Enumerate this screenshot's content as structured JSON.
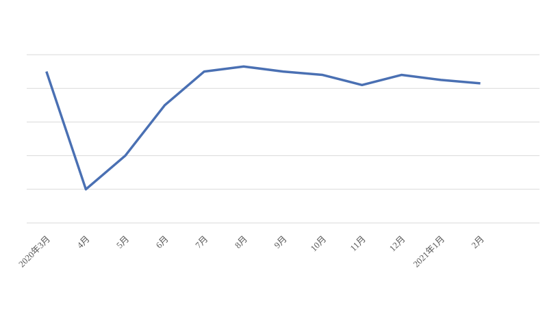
{
  "chart_data": {
    "type": "line",
    "categories": [
      "2020年3月",
      "4月",
      "5月",
      "6月",
      "7月",
      "8月",
      "9月",
      "10月",
      "11月",
      "12月",
      "2021年1月",
      "2月",
      null
    ],
    "series": [
      {
        "color": "#4a70b3",
        "values": [
          4.5,
          1.0,
          2.0,
          3.5,
          4.5,
          4.65,
          4.5,
          4.4,
          4.1,
          4.4,
          4.25,
          4.15,
          null
        ]
      }
    ],
    "ylim": [
      0,
      5
    ],
    "yticks": [
      0,
      1,
      2,
      3,
      4,
      5
    ],
    "grid": true
  }
}
